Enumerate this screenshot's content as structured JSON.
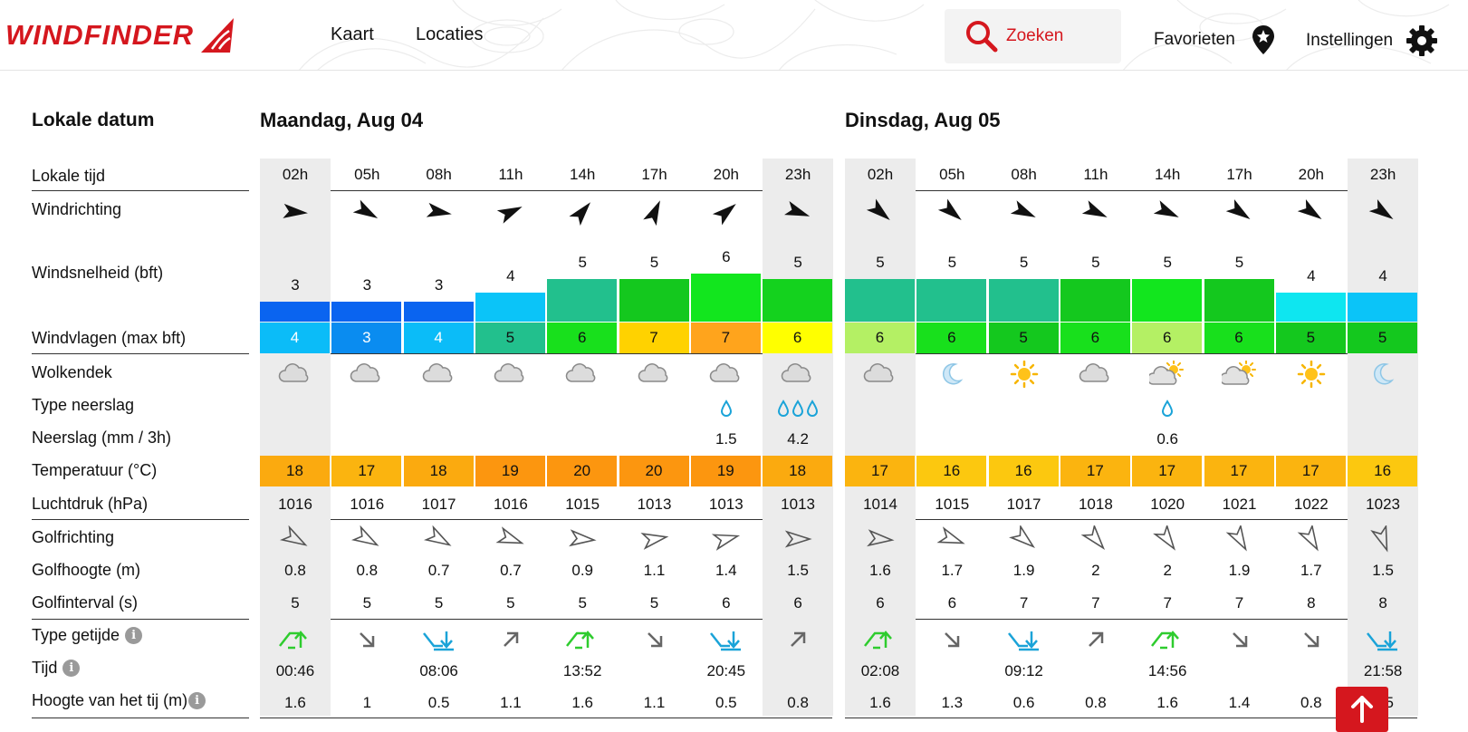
{
  "header": {
    "logo": "WINDFINDER",
    "nav": [
      "Kaart",
      "Locaties"
    ],
    "search_label": "Zoeken",
    "favorites_label": "Favorieten",
    "settings_label": "Instellingen"
  },
  "labels": {
    "date": "Lokale datum",
    "time": "Lokale tijd",
    "wind_dir": "Windrichting",
    "wind_speed": "Windsnelheid (bft)",
    "gusts": "Windvlagen (max bft)",
    "clouds": "Wolkendek",
    "precip_type": "Type neerslag",
    "precip": "Neerslag (mm / 3h)",
    "temp": "Temperatuur (°C)",
    "pressure": "Luchtdruk (hPa)",
    "wave_dir": "Golfrichting",
    "wave_height": "Golfhoogte (m)",
    "wave_period": "Golfinterval (s)",
    "tide_type": "Type getijde",
    "tide_time": "Tijd",
    "tide_height": "Hoogte van het tij (m)"
  },
  "days": [
    {
      "title": "Maandag, Aug 04",
      "hours": [
        "02h",
        "05h",
        "08h",
        "11h",
        "14h",
        "17h",
        "20h",
        "23h"
      ],
      "wind_dir_deg": [
        95,
        120,
        100,
        65,
        40,
        25,
        50,
        110
      ],
      "wind_speed": [
        3,
        3,
        3,
        4,
        5,
        5,
        6,
        5
      ],
      "wind_speed_colors": [
        "#0a64f0",
        "#0a64f0",
        "#0a64f0",
        "#0bc4f8",
        "#22c08d",
        "#14c81e",
        "#12e61e",
        "#14d21e"
      ],
      "gusts": [
        4,
        3,
        4,
        5,
        6,
        7,
        7,
        6
      ],
      "gust_colors": [
        "#0bbcf8",
        "#0a8cf0",
        "#0bbcf8",
        "#22c08d",
        "#18e01c",
        "#ffd200",
        "#ffa41c",
        "#ffff00"
      ],
      "gust_text_white": [
        true,
        true,
        true,
        false,
        false,
        false,
        false,
        false
      ],
      "clouds": [
        "cloud",
        "cloud",
        "cloud",
        "cloud",
        "cloud",
        "cloud",
        "cloud",
        "cloud"
      ],
      "precip_type": [
        "",
        "",
        "",
        "",
        "",
        "",
        "drop1",
        "drop3"
      ],
      "precip": [
        "",
        "",
        "",
        "",
        "",
        "",
        "1.5",
        "4.2"
      ],
      "temp": [
        18,
        17,
        18,
        19,
        20,
        20,
        19,
        18
      ],
      "temp_colors": [
        "#fbaa0f",
        "#fbb40f",
        "#fbaa0f",
        "#fc960f",
        "#fc960f",
        "#fc960f",
        "#fc960f",
        "#fbaa0f"
      ],
      "pressure": [
        1016,
        1016,
        1017,
        1016,
        1015,
        1013,
        1013,
        1013
      ],
      "wave_dir_deg": [
        120,
        120,
        120,
        110,
        95,
        80,
        75,
        90
      ],
      "wave_height": [
        "0.8",
        "0.8",
        "0.7",
        "0.7",
        "0.9",
        "1.1",
        "1.4",
        "1.5"
      ],
      "wave_period": [
        5,
        5,
        5,
        5,
        5,
        5,
        6,
        6
      ],
      "tide_type": [
        "high",
        "fall",
        "low",
        "rise",
        "high",
        "fall",
        "low",
        "rise"
      ],
      "tide_time": [
        "00:46",
        "",
        "08:06",
        "",
        "13:52",
        "",
        "20:45",
        ""
      ],
      "tide_height": [
        "1.6",
        "1",
        "0.5",
        "1.1",
        "1.6",
        "1.1",
        "0.5",
        "0.8"
      ]
    },
    {
      "title": "Dinsdag, Aug 05",
      "hours": [
        "02h",
        "05h",
        "08h",
        "11h",
        "14h",
        "17h",
        "20h",
        "23h"
      ],
      "wind_dir_deg": [
        130,
        130,
        115,
        115,
        115,
        125,
        125,
        125
      ],
      "wind_speed": [
        5,
        5,
        5,
        5,
        5,
        5,
        4,
        4
      ],
      "wind_speed_colors": [
        "#22c08d",
        "#22c08d",
        "#22c08d",
        "#14c81e",
        "#12e61e",
        "#14c81e",
        "#0ee6f0",
        "#0bc4f8"
      ],
      "gusts": [
        6,
        6,
        5,
        6,
        6,
        6,
        5,
        5
      ],
      "gust_colors": [
        "#b4f064",
        "#18e01c",
        "#14c81e",
        "#18e01c",
        "#b4f064",
        "#18e01c",
        "#14c81e",
        "#14c81e"
      ],
      "gust_text_white": [
        false,
        false,
        false,
        false,
        false,
        false,
        false,
        false
      ],
      "clouds": [
        "cloud",
        "moon",
        "sun",
        "cloud",
        "cloud-sun",
        "cloud-sun",
        "sun",
        "moon"
      ],
      "precip_type": [
        "",
        "",
        "",
        "",
        "drop1",
        "",
        "",
        ""
      ],
      "precip": [
        "",
        "",
        "",
        "",
        "0.6",
        "",
        "",
        ""
      ],
      "temp": [
        17,
        16,
        16,
        17,
        17,
        17,
        17,
        16
      ],
      "temp_colors": [
        "#fbb40f",
        "#fcc80f",
        "#fcc80f",
        "#fbb40f",
        "#fbb40f",
        "#fbb40f",
        "#fbb40f",
        "#fcc80f"
      ],
      "pressure": [
        1014,
        1015,
        1017,
        1018,
        1020,
        1021,
        1022,
        1023
      ],
      "wave_dir_deg": [
        95,
        110,
        130,
        140,
        145,
        150,
        150,
        160
      ],
      "wave_height": [
        "1.6",
        "1.7",
        "1.9",
        "2",
        "2",
        "1.9",
        "1.7",
        "1.5"
      ],
      "wave_period": [
        6,
        6,
        7,
        7,
        7,
        7,
        8,
        8
      ],
      "tide_type": [
        "high",
        "fall",
        "low",
        "rise",
        "high",
        "fall",
        "fall",
        "low"
      ],
      "tide_time": [
        "02:08",
        "",
        "09:12",
        "",
        "14:56",
        "",
        "",
        "21:58"
      ],
      "tide_height": [
        "1.6",
        "1.3",
        "0.6",
        "0.8",
        "1.6",
        "1.4",
        "0.8",
        "1.5"
      ]
    }
  ],
  "colors": {
    "brand": "#d5171e",
    "tide_green": "#2ecc2e",
    "tide_blue": "#1aa3d8",
    "rain": "#1aa3d8"
  }
}
